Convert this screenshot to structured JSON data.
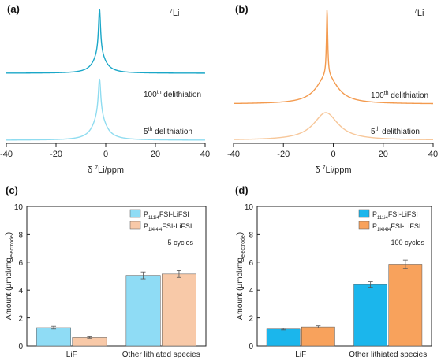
{
  "colors": {
    "teal_dark": "#1aa7c8",
    "teal_light": "#8fdcf0",
    "orange_dark": "#f39a4e",
    "orange_light": "#f7c79a",
    "bar_blue_light": "#8fdcf5",
    "bar_peach": "#f8c9a8",
    "bar_blue_dark": "#1bb6ec",
    "bar_orange_dark": "#f8a25c"
  },
  "chart_data": [
    {
      "panel": "(a)",
      "type": "line",
      "nucleus": "7Li",
      "xlabel_prefix": "δ ",
      "xlabel_sup": "7",
      "xlabel_rest": "Li/ppm",
      "xlim": [
        -40,
        40
      ],
      "xticks": [
        "-40",
        "-20",
        "0",
        "20",
        "40"
      ],
      "series": [
        {
          "label_main": "100",
          "label_sup": "th",
          "label_rest": " delithiation",
          "center": -2.5,
          "peak_height": 1.0,
          "narrow_fraction": 0.7,
          "broad_width": 2.8,
          "narrow_width": 0.5
        },
        {
          "label_main": "5",
          "label_sup": "th",
          "label_rest": " delithiation",
          "center": -2.5,
          "peak_height": 1.0,
          "narrow_fraction": 0.6,
          "broad_width": 3.0,
          "narrow_width": 0.6
        }
      ]
    },
    {
      "panel": "(b)",
      "type": "line",
      "nucleus": "7Li",
      "xlabel_prefix": "δ ",
      "xlabel_sup": "7",
      "xlabel_rest": "Li/ppm",
      "xlim": [
        -40,
        40
      ],
      "xticks": [
        "-40",
        "-20",
        "0",
        "20",
        "40"
      ],
      "series": [
        {
          "label_main": "100",
          "label_sup": "th",
          "label_rest": " delithiation",
          "center": -2.5,
          "peak_height": 1.0,
          "narrow_fraction": 0.7,
          "broad_width": 5.0,
          "narrow_width": 0.3
        },
        {
          "label_main": "5",
          "label_sup": "th",
          "label_rest": " delithiation",
          "center": -3.0,
          "peak_height": 1.0,
          "narrow_fraction": 0.0,
          "broad_width": 6.0,
          "narrow_width": 0.3
        }
      ]
    },
    {
      "panel": "(c)",
      "type": "bar",
      "annotation": "5 cycles",
      "ylabel_main": "Amount (μmol/mg",
      "ylabel_sub": "electrode",
      "ylabel_end": ")",
      "ylim": [
        0,
        10
      ],
      "yticks": [
        "0",
        "2",
        "4",
        "6",
        "8",
        "10"
      ],
      "categories": [
        "LiF",
        "Other lithiated species"
      ],
      "series": [
        {
          "name_main": "P",
          "name_sub": "111i4",
          "name_rest": "FSI-LiFSI",
          "values": [
            1.3,
            5.05
          ],
          "errors": [
            0.1,
            0.25
          ]
        },
        {
          "name_main": "P",
          "name_sub": "1i4i4i4",
          "name_rest": "FSI-LiFSI",
          "values": [
            0.6,
            5.15
          ],
          "errors": [
            0.05,
            0.25
          ]
        }
      ]
    },
    {
      "panel": "(d)",
      "type": "bar",
      "annotation": "100 cycles",
      "ylabel_main": "Amount (μmol/mg",
      "ylabel_sub": "electrode",
      "ylabel_end": ")",
      "ylim": [
        0,
        10
      ],
      "yticks": [
        "0",
        "2",
        "4",
        "6",
        "8",
        "10"
      ],
      "categories": [
        "LiF",
        "Other lithiated species"
      ],
      "series": [
        {
          "name_main": "P",
          "name_sub": "111i4",
          "name_rest": "FSI-LiFSI",
          "values": [
            1.2,
            4.4
          ],
          "errors": [
            0.06,
            0.2
          ]
        },
        {
          "name_main": "P",
          "name_sub": "1i4i4i4",
          "name_rest": "FSI-LiFSI",
          "values": [
            1.35,
            5.85
          ],
          "errors": [
            0.08,
            0.3
          ]
        }
      ]
    }
  ]
}
